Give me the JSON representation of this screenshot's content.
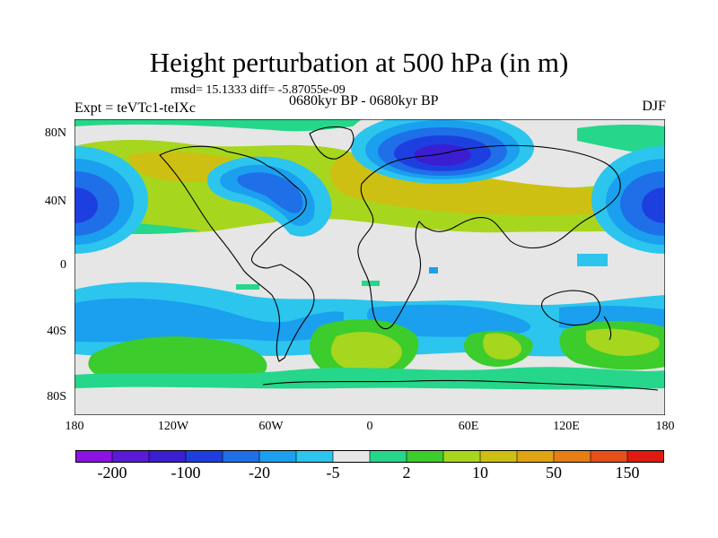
{
  "title": "Height perturbation at 500 hPa (in m)",
  "stats_text": "rmsd= 15.1333 diff= -5.87055e-09",
  "left_label": "Expt = teVTc1-teIXc",
  "center_label": "0680kyr BP - 0680kyr BP",
  "right_label": "DJF",
  "lat_ticks": [
    "80N",
    "40N",
    "0",
    "40S",
    "80S"
  ],
  "lon_ticks": [
    "180",
    "120W",
    "60W",
    "0",
    "60E",
    "120E",
    "180"
  ],
  "colorbar": {
    "colors": [
      "#8b13e3",
      "#5a1ad6",
      "#3b1ed2",
      "#1e3fe0",
      "#1f6fe8",
      "#1aa0ee",
      "#2cc5ee",
      "#e6e6e6",
      "#26d68a",
      "#3ccc2c",
      "#a6d61e",
      "#cdc012",
      "#e0a311",
      "#e67e14",
      "#e6501a",
      "#e01a10"
    ],
    "labels": [
      "-200",
      "-100",
      "-20",
      "-5",
      "2",
      "10",
      "50",
      "150"
    ]
  }
}
